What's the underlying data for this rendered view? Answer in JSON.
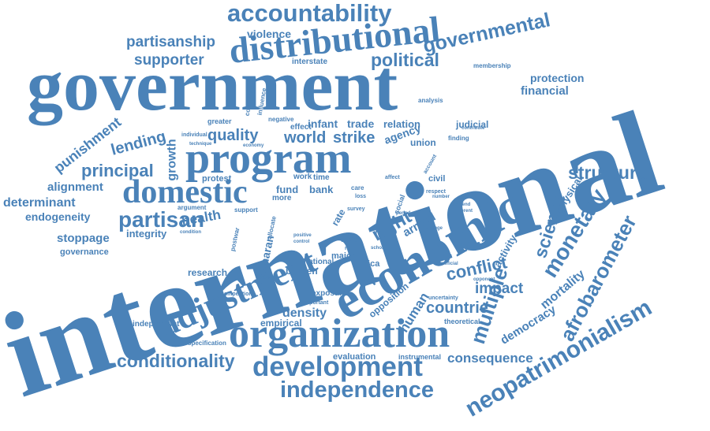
{
  "colors": {
    "word": "#4a82b8",
    "background": "#ffffff"
  },
  "words": {
    "international": "international",
    "government": "government",
    "economic": "economic",
    "organization": "organization",
    "adjustment": "adjustment",
    "program": "program",
    "distributional": "distributional",
    "domestic": "domestic",
    "development": "development",
    "independence": "independence",
    "accountability": "accountability",
    "neopatrimonialism": "neopatrimonialism",
    "afrobarometer": "afrobarometer",
    "governmental": "governmental",
    "structural": "structural",
    "conditionality": "conditionality",
    "partisan": "partisan",
    "monetary": "monetary",
    "multiple": "multiple",
    "science": "science",
    "political": "political",
    "conflict": "conflict",
    "partisanship": "partisanship",
    "supporter": "supporter",
    "violence": "violence",
    "quality": "quality",
    "world": "world",
    "strike": "strike",
    "right": "right",
    "armed": "armed",
    "impact": "impact",
    "countrie": "countrie",
    "consequence": "consequence",
    "mortality": "mortality",
    "democracy": "democracy",
    "human": "human",
    "principal": "principal",
    "lending": "lending",
    "growth": "growth",
    "punishment": "punishment",
    "alignment": "alignment",
    "determinant": "determinant",
    "endogeneity": "endogeneity",
    "stoppage": "stoppage",
    "integrity": "integrity",
    "health": "health",
    "governance": "governance",
    "protection": "protection",
    "financial": "financial",
    "infant": "infant",
    "trade": "trade",
    "relation": "relation",
    "agency": "agency",
    "judicial": "judicial",
    "union": "union",
    "fund": "fund",
    "bank": "bank",
    "protest": "protest",
    "civil": "civil",
    "physical": "physical",
    "activity": "activity",
    "density": "density",
    "empirical": "empirical",
    "evaluation": "evaluation",
    "instrumental": "instrumental",
    "opposition": "opposition",
    "research": "research",
    "burden": "burden",
    "africa": "africa",
    "exposure": "exposure",
    "independent": "independent",
    "specification": "specification",
    "theoretical": "theoretical",
    "interstate": "interstate",
    "membership": "membership",
    "greater": "greater",
    "negative": "negative",
    "effect": "effect",
    "analysis": "analysis",
    "finding": "finding",
    "saharan": "saharan",
    "major": "major",
    "national": "national",
    "reform": "reform",
    "facto": "facto",
    "rate": "rate",
    "social": "social",
    "survey": "survey",
    "loss": "loss",
    "care": "care",
    "work": "work",
    "time": "time",
    "more": "more",
    "argument": "argument",
    "support": "support",
    "condition": "condition",
    "postwar": "postwar",
    "allocate": "allocate",
    "positive": "positive",
    "control": "control",
    "period": "period",
    "different": "different",
    "respect": "respect",
    "account": "account",
    "competition": "competition",
    "important": "important",
    "uncertainty": "uncertainty",
    "beneficial": "beneficial",
    "opponent": "opponent",
    "individual": "individual",
    "technique": "technique",
    "economy": "economy",
    "comparative": "comparative",
    "influence": "influence",
    "contribute": "contribute",
    "affect": "affect",
    "variable": "variable",
    "number": "number",
    "change": "change",
    "scholar": "scholar",
    "contend": "contend"
  }
}
